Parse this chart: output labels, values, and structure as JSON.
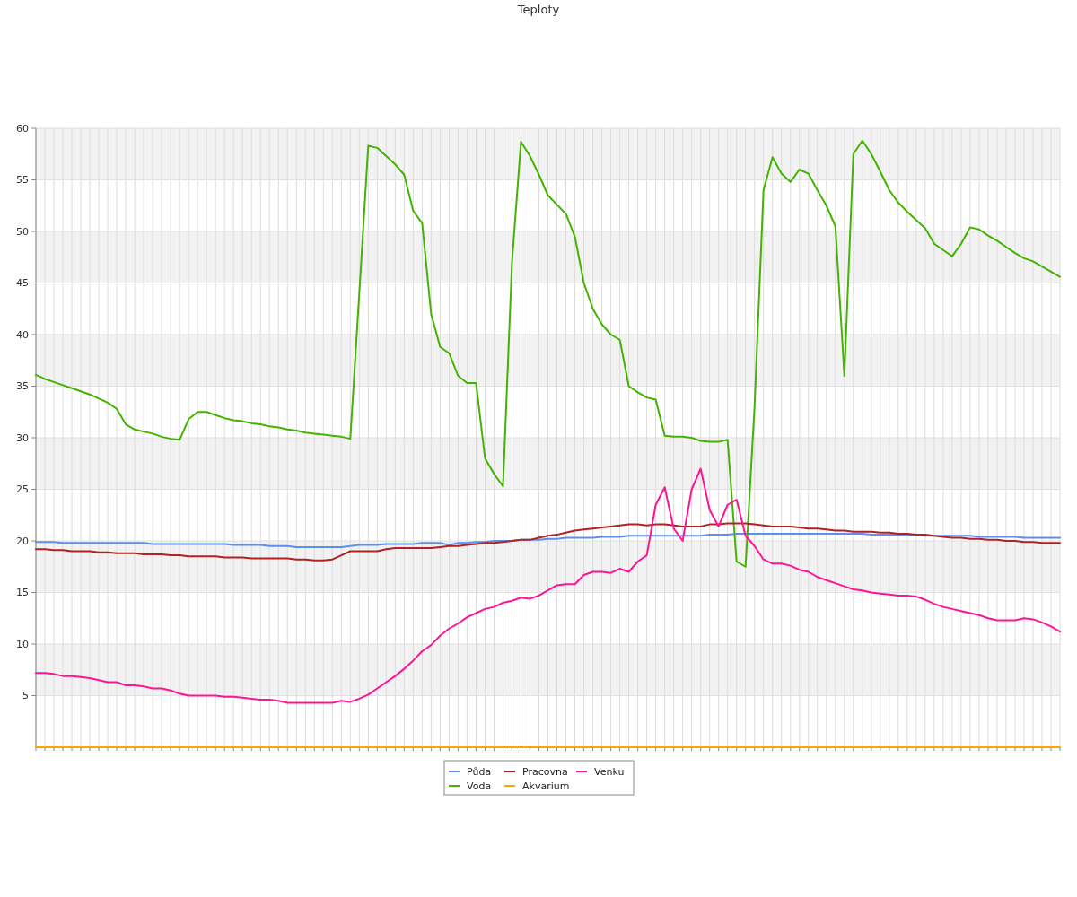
{
  "chart_data": {
    "type": "line",
    "title": "Teploty",
    "categories": [
      null,
      null,
      null,
      null,
      null,
      null,
      null,
      null,
      null,
      null,
      null,
      null,
      null,
      null,
      null,
      null,
      null,
      null,
      null,
      null,
      null,
      null,
      null,
      null,
      null,
      null,
      null,
      null,
      null,
      null,
      null,
      null,
      null,
      null,
      null,
      null,
      null,
      null,
      null,
      null,
      null,
      null,
      null,
      null,
      null,
      null,
      null,
      null,
      null,
      null,
      null,
      null,
      null,
      null,
      null,
      null,
      null,
      null,
      null,
      null,
      null,
      null,
      null,
      null,
      null,
      null,
      null,
      null,
      null,
      null,
      null,
      null,
      null,
      null,
      null,
      null,
      null,
      null,
      null,
      null,
      null,
      null,
      null,
      null,
      null,
      null,
      null,
      null,
      null,
      null,
      null,
      null,
      null,
      null,
      null,
      null,
      null,
      null,
      null,
      null,
      null,
      null,
      null,
      null,
      null,
      null,
      null,
      null,
      null,
      null,
      null,
      null,
      null,
      null,
      null
    ],
    "ylim": [
      0,
      60
    ],
    "yticks": [
      5,
      10,
      15,
      20,
      25,
      30,
      35,
      40,
      45,
      50,
      55,
      60
    ],
    "grid": true,
    "legend": "bottom",
    "series": [
      {
        "name": "Půda",
        "color": "#5b8ff0",
        "values": [
          19.9,
          19.9,
          19.9,
          19.8,
          19.8,
          19.8,
          19.8,
          19.8,
          19.8,
          19.8,
          19.8,
          19.8,
          19.8,
          19.7,
          19.7,
          19.7,
          19.7,
          19.7,
          19.7,
          19.7,
          19.7,
          19.7,
          19.6,
          19.6,
          19.6,
          19.6,
          19.5,
          19.5,
          19.5,
          19.4,
          19.4,
          19.4,
          19.4,
          19.4,
          19.4,
          19.5,
          19.6,
          19.6,
          19.6,
          19.7,
          19.7,
          19.7,
          19.7,
          19.8,
          19.8,
          19.8,
          19.6,
          19.8,
          19.8,
          19.9,
          19.9,
          20.0,
          20.0,
          20.0,
          20.1,
          20.1,
          20.1,
          20.2,
          20.2,
          20.3,
          20.3,
          20.3,
          20.3,
          20.4,
          20.4,
          20.4,
          20.5,
          20.5,
          20.5,
          20.5,
          20.5,
          20.5,
          20.5,
          20.5,
          20.5,
          20.6,
          20.6,
          20.6,
          20.7,
          20.7,
          20.7,
          20.7,
          20.7,
          20.7,
          20.7,
          20.7,
          20.7,
          20.7,
          20.7,
          20.7,
          20.7,
          20.7,
          20.7,
          20.6,
          20.6,
          20.6,
          20.6,
          20.6,
          20.6,
          20.5,
          20.5,
          20.5,
          20.5,
          20.5,
          20.5,
          20.4,
          20.4,
          20.4,
          20.4,
          20.4,
          20.3,
          20.3,
          20.3,
          20.3,
          20.3
        ]
      },
      {
        "name": "Voda",
        "color": "#44b300",
        "values": [
          36.1,
          35.7,
          35.4,
          35.1,
          34.8,
          34.5,
          34.2,
          33.8,
          33.4,
          32.8,
          31.3,
          30.8,
          30.6,
          30.4,
          30.1,
          29.9,
          29.8,
          31.8,
          32.5,
          32.5,
          32.2,
          31.9,
          31.7,
          31.6,
          31.4,
          31.3,
          31.1,
          31.0,
          30.8,
          30.7,
          30.5,
          30.4,
          30.3,
          30.2,
          30.1,
          29.9,
          44,
          58.3,
          58.1,
          57.3,
          56.5,
          55.5,
          52,
          50.8,
          42,
          38.8,
          38.2,
          36,
          35.3,
          35.3,
          28,
          26.5,
          25.3,
          47,
          58.7,
          57.3,
          55.5,
          53.5,
          52.6,
          51.7,
          49.5,
          45,
          42.5,
          41,
          40,
          39.5,
          35,
          34.4,
          33.9,
          33.7,
          30.2,
          30.1,
          30.1,
          30.0,
          29.7,
          29.6,
          29.6,
          29.8,
          18,
          17.5,
          33,
          54,
          57.2,
          55.6,
          54.8,
          56.0,
          55.6,
          54,
          52.5,
          50.5,
          36,
          57.5,
          58.8,
          57.5,
          55.8,
          54,
          52.8,
          51.9,
          51.1,
          50.3,
          48.8,
          48.2,
          47.6,
          48.8,
          50.4,
          50.2,
          49.6,
          49.1,
          48.5,
          47.9,
          47.4,
          47.1,
          46.6,
          46.1,
          45.6
        ]
      },
      {
        "name": "Pracovna",
        "color": "#b22222",
        "values": [
          19.2,
          19.2,
          19.1,
          19.1,
          19.0,
          19.0,
          19.0,
          18.9,
          18.9,
          18.8,
          18.8,
          18.8,
          18.7,
          18.7,
          18.7,
          18.6,
          18.6,
          18.5,
          18.5,
          18.5,
          18.5,
          18.4,
          18.4,
          18.4,
          18.3,
          18.3,
          18.3,
          18.3,
          18.3,
          18.2,
          18.2,
          18.1,
          18.1,
          18.2,
          18.6,
          19.0,
          19.0,
          19.0,
          19.0,
          19.2,
          19.3,
          19.3,
          19.3,
          19.3,
          19.3,
          19.4,
          19.5,
          19.5,
          19.6,
          19.7,
          19.8,
          19.8,
          19.9,
          20.0,
          20.1,
          20.1,
          20.3,
          20.5,
          20.6,
          20.8,
          21.0,
          21.1,
          21.2,
          21.3,
          21.4,
          21.5,
          21.6,
          21.6,
          21.5,
          21.6,
          21.6,
          21.5,
          21.4,
          21.4,
          21.4,
          21.6,
          21.6,
          21.7,
          21.7,
          21.7,
          21.6,
          21.5,
          21.4,
          21.4,
          21.4,
          21.3,
          21.2,
          21.2,
          21.1,
          21.0,
          21.0,
          20.9,
          20.9,
          20.9,
          20.8,
          20.8,
          20.7,
          20.7,
          20.6,
          20.6,
          20.5,
          20.4,
          20.3,
          20.3,
          20.2,
          20.2,
          20.1,
          20.1,
          20.0,
          20.0,
          19.9,
          19.9,
          19.8,
          19.8,
          19.8
        ]
      },
      {
        "name": "Akvarium",
        "color": "#ffa500",
        "values": [
          0,
          0,
          0,
          0,
          0,
          0,
          0,
          0,
          0,
          0,
          0,
          0,
          0,
          0,
          0,
          0,
          0,
          0,
          0,
          0,
          0,
          0,
          0,
          0,
          0,
          0,
          0,
          0,
          0,
          0,
          0,
          0,
          0,
          0,
          0,
          0,
          0,
          0,
          0,
          0,
          0,
          0,
          0,
          0,
          0,
          0,
          0,
          0,
          0,
          0,
          0,
          0,
          0,
          0,
          0,
          0,
          0,
          0,
          0,
          0,
          0,
          0,
          0,
          0,
          0,
          0,
          0,
          0,
          0,
          0,
          0,
          0,
          0,
          0,
          0,
          0,
          0,
          0,
          0,
          0,
          0,
          0,
          0,
          0,
          0,
          0,
          0,
          0,
          0,
          0,
          0,
          0,
          0,
          0,
          0,
          0,
          0,
          0,
          0,
          0,
          0,
          0,
          0,
          0,
          0,
          0,
          0,
          0,
          0,
          0,
          0,
          0,
          0,
          0,
          0
        ]
      },
      {
        "name": "Venku",
        "color": "#ff1493",
        "values": [
          7.2,
          7.2,
          7.1,
          6.9,
          6.9,
          6.8,
          6.7,
          6.5,
          6.3,
          6.3,
          6.0,
          6.0,
          5.9,
          5.7,
          5.7,
          5.5,
          5.2,
          5.0,
          5.0,
          5.0,
          5.0,
          4.9,
          4.9,
          4.8,
          4.7,
          4.6,
          4.6,
          4.5,
          4.3,
          4.3,
          4.3,
          4.3,
          4.3,
          4.3,
          4.5,
          4.4,
          4.7,
          5.1,
          5.7,
          6.3,
          6.9,
          7.6,
          8.4,
          9.3,
          9.9,
          10.8,
          11.5,
          12.0,
          12.6,
          13.0,
          13.4,
          13.6,
          14.0,
          14.2,
          14.5,
          14.4,
          14.7,
          15.2,
          15.7,
          15.8,
          15.8,
          16.7,
          17.0,
          17.0,
          16.9,
          17.3,
          17.0,
          18.0,
          18.6,
          23.5,
          25.2,
          21.2,
          20.0,
          25.0,
          27.0,
          23.0,
          21.4,
          23.5,
          24.0,
          20.5,
          19.5,
          18.2,
          17.8,
          17.8,
          17.6,
          17.2,
          17.0,
          16.5,
          16.2,
          15.9,
          15.6,
          15.3,
          15.2,
          15.0,
          14.9,
          14.8,
          14.7,
          14.7,
          14.6,
          14.3,
          13.9,
          13.6,
          13.4,
          13.2,
          13.0,
          12.8,
          12.5,
          12.3,
          12.3,
          12.3,
          12.5,
          12.4,
          12.1,
          11.7,
          11.2
        ]
      }
    ]
  }
}
